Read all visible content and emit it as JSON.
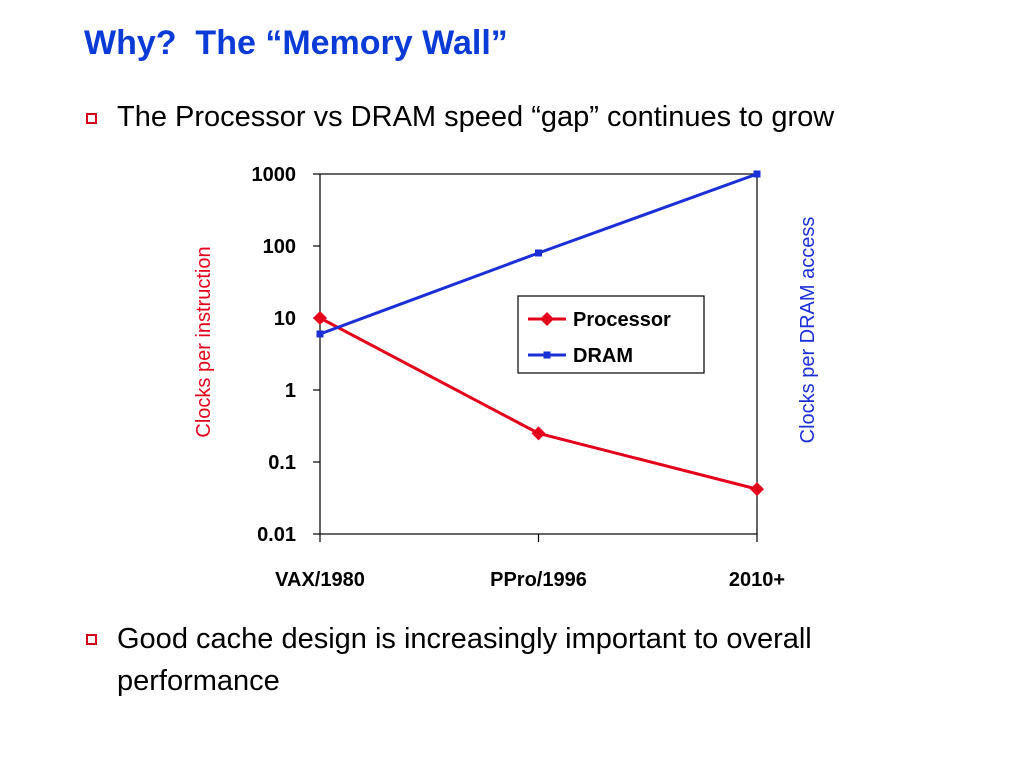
{
  "slide": {
    "title": "Why?  The “Memory Wall”",
    "bullets": [
      "The Processor vs DRAM speed “gap” continues to grow",
      "Good cache design is increasingly important to overall performance"
    ],
    "bullet_color": "#d4001a",
    "title_color": "#0b3bd6"
  },
  "chart_data": {
    "type": "line",
    "categories": [
      "VAX/1980",
      "PPro/1996",
      "2010+"
    ],
    "y_ticks": [
      "1000",
      "100",
      "10",
      "1",
      "0.1",
      "0.01"
    ],
    "y_scale": "log",
    "ylim": [
      0.01,
      1000
    ],
    "ylabel_left": "Clocks per instruction",
    "ylabel_right": "Clocks per DRAM access",
    "legend_position": "center-right",
    "grid": false,
    "series": [
      {
        "name": "Processor",
        "values": [
          10,
          0.25,
          0.042
        ],
        "color": "#e3001b",
        "marker": "diamond"
      },
      {
        "name": "DRAM",
        "values": [
          6,
          80,
          1000
        ],
        "color": "#1b2fd6",
        "marker": "square"
      }
    ]
  }
}
